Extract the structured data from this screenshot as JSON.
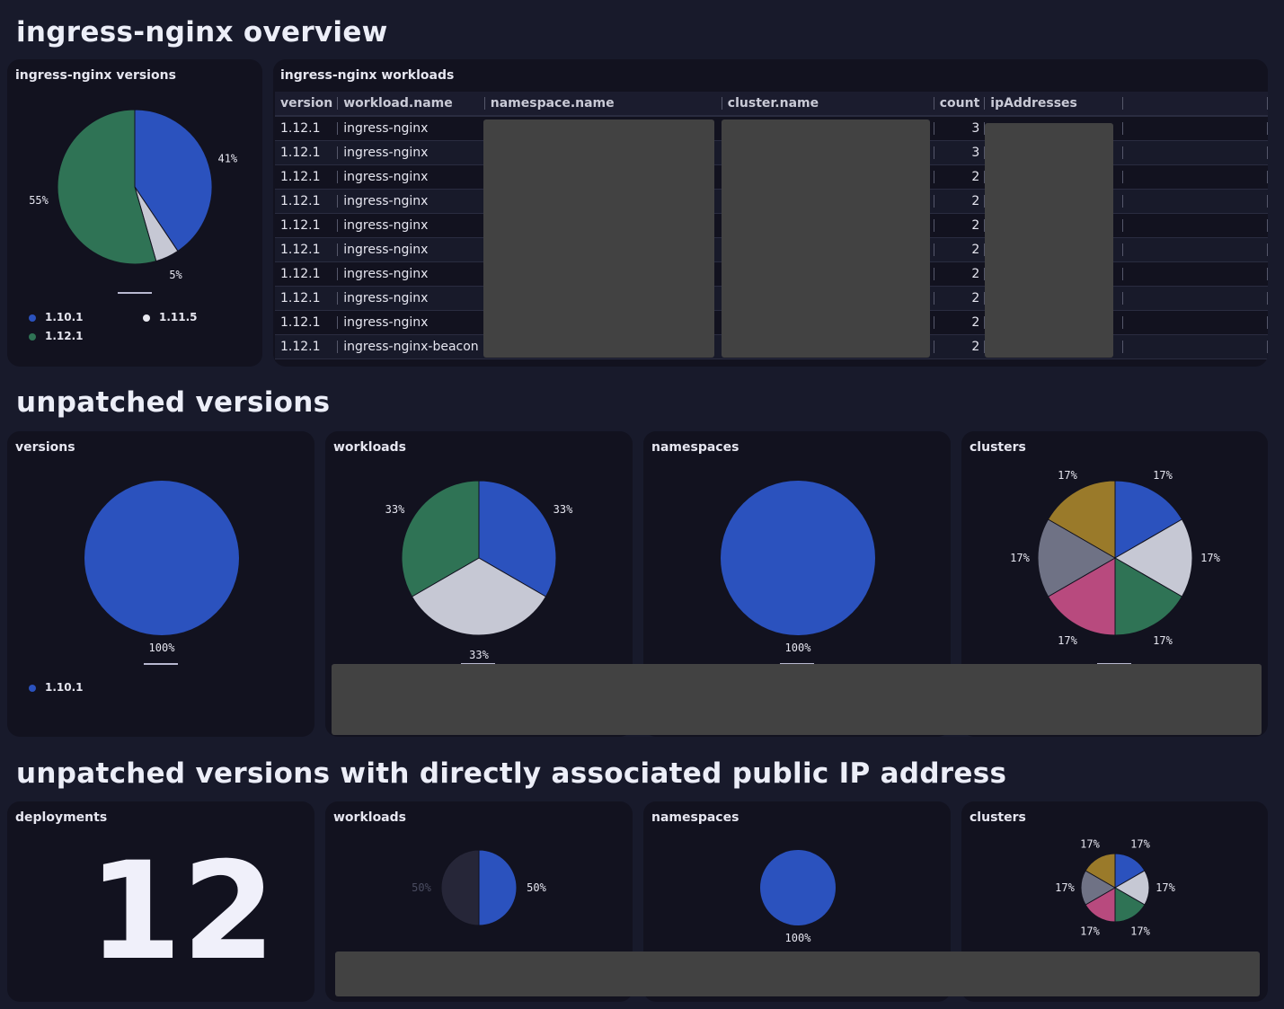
{
  "sections": {
    "overview": "ingress-nginx overview",
    "unpatched": "unpatched versions",
    "public_ip": "unpatched versions with directly associated public IP address"
  },
  "panels": {
    "versions_pie": "ingress-nginx versions",
    "workloads_table": "ingress-nginx workloads",
    "unpatched_versions": "versions",
    "unpatched_workloads": "workloads",
    "unpatched_namespaces": "namespaces",
    "unpatched_clusters": "clusters",
    "pub_deployments": "deployments",
    "pub_workloads": "workloads",
    "pub_namespaces": "namespaces",
    "pub_clusters": "clusters"
  },
  "deployments_count": "12",
  "table": {
    "columns": [
      "version",
      "workload.name",
      "namespace.name",
      "cluster.name",
      "count",
      "ipAddresses"
    ],
    "rows": [
      {
        "version": "1.12.1",
        "workload": "ingress-nginx",
        "count": "3"
      },
      {
        "version": "1.12.1",
        "workload": "ingress-nginx",
        "count": "3"
      },
      {
        "version": "1.12.1",
        "workload": "ingress-nginx",
        "count": "2"
      },
      {
        "version": "1.12.1",
        "workload": "ingress-nginx",
        "count": "2"
      },
      {
        "version": "1.12.1",
        "workload": "ingress-nginx",
        "count": "2"
      },
      {
        "version": "1.12.1",
        "workload": "ingress-nginx",
        "count": "2"
      },
      {
        "version": "1.12.1",
        "workload": "ingress-nginx",
        "count": "2"
      },
      {
        "version": "1.12.1",
        "workload": "ingress-nginx",
        "count": "2"
      },
      {
        "version": "1.12.1",
        "workload": "ingress-nginx",
        "count": "2"
      },
      {
        "version": "1.12.1",
        "workload": "ingress-nginx-beacon",
        "count": "2"
      }
    ]
  },
  "colors": {
    "blue": "#2b52be",
    "green": "#2f7355",
    "light": "#c6c8d4",
    "magenta": "#b84a7e",
    "gray": "#6f7285",
    "gold": "#9a7a2a",
    "dim": "#262638"
  },
  "legends": {
    "versions_pie": [
      {
        "label": "1.10.1",
        "color": "#2b52be"
      },
      {
        "label": "1.11.5",
        "color": "#e8e8f0"
      },
      {
        "label": "1.12.1",
        "color": "#2f7355"
      }
    ],
    "unpatched_versions": [
      {
        "label": "1.10.1",
        "color": "#2b52be"
      }
    ]
  },
  "chart_data": [
    {
      "id": "versions_pie",
      "type": "pie",
      "slices": [
        {
          "value": 41,
          "label": "41%",
          "color": "#2b52be"
        },
        {
          "value": 5,
          "label": "5%",
          "color": "#c6c8d4"
        },
        {
          "value": 55,
          "label": "55%",
          "color": "#2f7355"
        }
      ]
    },
    {
      "id": "unpatched_versions",
      "type": "pie",
      "slices": [
        {
          "value": 100,
          "label": "100%",
          "color": "#2b52be"
        }
      ]
    },
    {
      "id": "unpatched_workloads",
      "type": "pie",
      "slices": [
        {
          "value": 33,
          "label": "33%",
          "color": "#2b52be"
        },
        {
          "value": 33,
          "label": "33%",
          "color": "#c6c8d4"
        },
        {
          "value": 33,
          "label": "33%",
          "color": "#2f7355"
        }
      ]
    },
    {
      "id": "unpatched_namespaces",
      "type": "pie",
      "slices": [
        {
          "value": 100,
          "label": "100%",
          "color": "#2b52be"
        }
      ]
    },
    {
      "id": "unpatched_clusters",
      "type": "pie",
      "slices": [
        {
          "value": 17,
          "label": "17%",
          "color": "#2b52be"
        },
        {
          "value": 17,
          "label": "17%",
          "color": "#c6c8d4"
        },
        {
          "value": 17,
          "label": "17%",
          "color": "#2f7355"
        },
        {
          "value": 17,
          "label": "17%",
          "color": "#b84a7e"
        },
        {
          "value": 17,
          "label": "17%",
          "color": "#6f7285"
        },
        {
          "value": 17,
          "label": "17%",
          "color": "#9a7a2a"
        }
      ]
    },
    {
      "id": "pub_workloads",
      "type": "pie",
      "slices": [
        {
          "value": 50,
          "label": "50%",
          "color": "#2b52be"
        },
        {
          "value": 50,
          "label": "50%",
          "color": "#262638",
          "dim": true
        }
      ]
    },
    {
      "id": "pub_namespaces",
      "type": "pie",
      "slices": [
        {
          "value": 100,
          "label": "100%",
          "color": "#2b52be"
        }
      ]
    },
    {
      "id": "pub_clusters",
      "type": "pie",
      "slices": [
        {
          "value": 17,
          "label": "17%",
          "color": "#2b52be"
        },
        {
          "value": 17,
          "label": "17%",
          "color": "#c6c8d4"
        },
        {
          "value": 17,
          "label": "17%",
          "color": "#2f7355"
        },
        {
          "value": 17,
          "label": "17%",
          "color": "#b84a7e"
        },
        {
          "value": 17,
          "label": "17%",
          "color": "#6f7285"
        },
        {
          "value": 17,
          "label": "17%",
          "color": "#9a7a2a"
        }
      ]
    }
  ]
}
